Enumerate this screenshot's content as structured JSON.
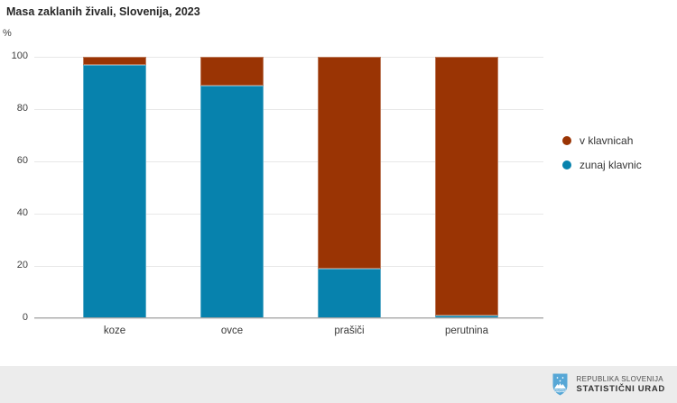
{
  "chart_data": {
    "type": "bar",
    "stacked": true,
    "title": "Masa zaklanih živali, Slovenija, 2023",
    "unit_label": "%",
    "categories": [
      "koze",
      "ovce",
      "prašiči",
      "perutnina"
    ],
    "series": [
      {
        "name": "v klavnicah",
        "color": "#9a3404",
        "values": [
          3,
          11,
          81,
          99
        ]
      },
      {
        "name": "zunaj klavnic",
        "color": "#0782ad",
        "values": [
          97,
          89,
          19,
          1
        ]
      }
    ],
    "ylim": [
      0,
      100
    ],
    "yticks": [
      0,
      20,
      40,
      60,
      80,
      100
    ],
    "grid": true,
    "legend_position": "right"
  },
  "footer": {
    "org_line1": "REPUBLIKA SLOVENIJA",
    "org_line2": "STATISTIČNI URAD",
    "logo": "slovenia-coat-of-arms",
    "logo_color": "#57a7d6"
  }
}
